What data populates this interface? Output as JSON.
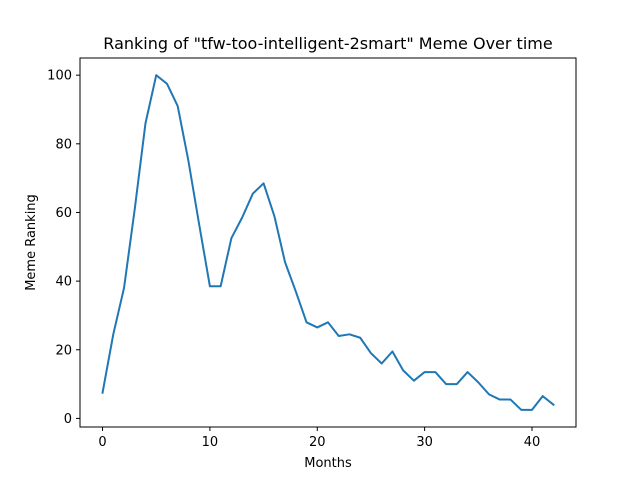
{
  "chart_data": {
    "type": "line",
    "title": "Ranking of \"tfw-too-intelligent-2smart\" Meme Over time",
    "xlabel": "Months",
    "ylabel": "Meme Ranking",
    "xlim": [
      -2.1,
      44.1
    ],
    "ylim": [
      -2.5,
      105
    ],
    "xticks": [
      0,
      10,
      20,
      30,
      40
    ],
    "yticks": [
      0,
      20,
      40,
      60,
      80,
      100
    ],
    "grid": false,
    "line_color": "#1f77b4",
    "series": [
      {
        "x": [
          0,
          1,
          2,
          3,
          4,
          5,
          6,
          7,
          8,
          9,
          10,
          11,
          12,
          13,
          14,
          15,
          16,
          17,
          18,
          19,
          20,
          21,
          22,
          23,
          24,
          25,
          26,
          27,
          28,
          29,
          30,
          31,
          32,
          33,
          34,
          35,
          36,
          37,
          38,
          39,
          40,
          41,
          42
        ],
        "values": [
          7.5,
          24.5,
          38,
          61,
          86,
          100,
          97.5,
          91,
          75,
          56.5,
          38.5,
          38.5,
          52.5,
          58.5,
          65.5,
          68.5,
          59,
          45.5,
          37,
          28,
          26.5,
          28,
          24,
          24.5,
          23.5,
          19,
          16,
          19.5,
          14,
          11,
          13.5,
          13.5,
          10,
          10,
          13.5,
          10.5,
          7,
          5.5,
          5.5,
          2.5,
          2.5,
          6.5,
          4
        ]
      }
    ]
  }
}
